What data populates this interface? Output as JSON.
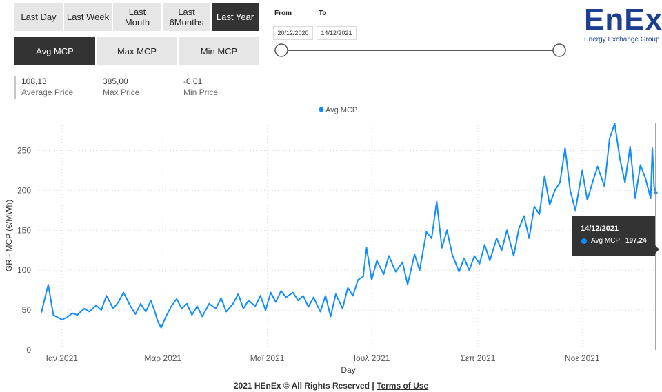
{
  "period_buttons": [
    {
      "label": "Last Day",
      "active": false
    },
    {
      "label": "Last Week",
      "active": false
    },
    {
      "label": "Last\nMonth",
      "active": false
    },
    {
      "label": "Last\n6Months",
      "active": false
    },
    {
      "label": "Last Year",
      "active": true
    }
  ],
  "metric_buttons": [
    {
      "label": "Avg MCP",
      "active": true
    },
    {
      "label": "Max MCP",
      "active": false
    },
    {
      "label": "Min MCP",
      "active": false
    }
  ],
  "kpis": [
    {
      "value": "108,13",
      "label": "Average Price"
    },
    {
      "value": "385,00",
      "label": "Max Price"
    },
    {
      "value": "-0,01",
      "label": "Min Price"
    }
  ],
  "date_range": {
    "from_label": "From",
    "to_label": "To",
    "from_value": "20/12/2020",
    "to_value": "14/12/2021"
  },
  "logo": {
    "text": "EnEx",
    "subtitle": "Energy Exchange Group"
  },
  "tooltip": {
    "date": "14/12/2021",
    "series": "Avg MCP",
    "value": "197,24"
  },
  "footer": {
    "text": "2021 HEnEx © All Rights Reserved | ",
    "link": "Terms of Use"
  },
  "colors": {
    "series": "#118dff",
    "dark_button": "#333333",
    "light_button": "#e6e6e6",
    "logo": "#1c3f8f"
  },
  "chart_data": {
    "type": "line",
    "xlabel": "Day",
    "ylabel": "GR - MCP (€/MWh)",
    "legend": "Avg MCP",
    "legend_position": "top-center",
    "grid": true,
    "ylim": [
      0,
      285
    ],
    "yticks": [
      0,
      50,
      100,
      150,
      200,
      250
    ],
    "x_ticks": [
      {
        "date": "2021-01-01",
        "label": "Ιαν 2021"
      },
      {
        "date": "2021-03-01",
        "label": "Μαρ 2021"
      },
      {
        "date": "2021-05-01",
        "label": "Μαϊ 2021"
      },
      {
        "date": "2021-07-01",
        "label": "Ιουλ 2021"
      },
      {
        "date": "2021-09-01",
        "label": "Σεπ 2021"
      },
      {
        "date": "2021-11-01",
        "label": "Νοε 2021"
      }
    ],
    "series": [
      {
        "name": "Avg MCP",
        "points": [
          [
            "2020-12-20",
            47
          ],
          [
            "2020-12-24",
            82
          ],
          [
            "2020-12-27",
            44
          ],
          [
            "2021-01-01",
            38
          ],
          [
            "2021-01-04",
            41
          ],
          [
            "2021-01-07",
            46
          ],
          [
            "2021-01-10",
            44
          ],
          [
            "2021-01-14",
            52
          ],
          [
            "2021-01-17",
            48
          ],
          [
            "2021-01-21",
            56
          ],
          [
            "2021-01-24",
            50
          ],
          [
            "2021-01-27",
            68
          ],
          [
            "2021-01-31",
            52
          ],
          [
            "2021-02-03",
            60
          ],
          [
            "2021-02-06",
            72
          ],
          [
            "2021-02-10",
            55
          ],
          [
            "2021-02-13",
            45
          ],
          [
            "2021-02-16",
            58
          ],
          [
            "2021-02-19",
            48
          ],
          [
            "2021-02-22",
            62
          ],
          [
            "2021-02-24",
            50
          ],
          [
            "2021-02-26",
            36
          ],
          [
            "2021-02-28",
            28
          ],
          [
            "2021-03-03",
            43
          ],
          [
            "2021-03-06",
            55
          ],
          [
            "2021-03-09",
            64
          ],
          [
            "2021-03-12",
            52
          ],
          [
            "2021-03-15",
            58
          ],
          [
            "2021-03-18",
            44
          ],
          [
            "2021-03-21",
            55
          ],
          [
            "2021-03-24",
            42
          ],
          [
            "2021-03-28",
            58
          ],
          [
            "2021-04-01",
            52
          ],
          [
            "2021-04-04",
            65
          ],
          [
            "2021-04-07",
            48
          ],
          [
            "2021-04-11",
            58
          ],
          [
            "2021-04-14",
            70
          ],
          [
            "2021-04-17",
            52
          ],
          [
            "2021-04-20",
            62
          ],
          [
            "2021-04-24",
            55
          ],
          [
            "2021-04-27",
            68
          ],
          [
            "2021-04-30",
            50
          ],
          [
            "2021-05-03",
            72
          ],
          [
            "2021-05-06",
            60
          ],
          [
            "2021-05-09",
            74
          ],
          [
            "2021-05-12",
            66
          ],
          [
            "2021-05-16",
            72
          ],
          [
            "2021-05-19",
            62
          ],
          [
            "2021-05-22",
            68
          ],
          [
            "2021-05-25",
            54
          ],
          [
            "2021-05-28",
            66
          ],
          [
            "2021-06-01",
            48
          ],
          [
            "2021-06-04",
            68
          ],
          [
            "2021-06-07",
            42
          ],
          [
            "2021-06-10",
            70
          ],
          [
            "2021-06-14",
            52
          ],
          [
            "2021-06-17",
            78
          ],
          [
            "2021-06-20",
            68
          ],
          [
            "2021-06-23",
            88
          ],
          [
            "2021-06-26",
            92
          ],
          [
            "2021-06-28",
            128
          ],
          [
            "2021-07-01",
            88
          ],
          [
            "2021-07-04",
            112
          ],
          [
            "2021-07-08",
            95
          ],
          [
            "2021-07-11",
            118
          ],
          [
            "2021-07-15",
            98
          ],
          [
            "2021-07-19",
            110
          ],
          [
            "2021-07-22",
            82
          ],
          [
            "2021-07-26",
            120
          ],
          [
            "2021-07-29",
            100
          ],
          [
            "2021-08-02",
            148
          ],
          [
            "2021-08-05",
            140
          ],
          [
            "2021-08-08",
            186
          ],
          [
            "2021-08-11",
            128
          ],
          [
            "2021-08-14",
            150
          ],
          [
            "2021-08-17",
            120
          ],
          [
            "2021-08-21",
            98
          ],
          [
            "2021-08-24",
            115
          ],
          [
            "2021-08-27",
            100
          ],
          [
            "2021-08-30",
            118
          ],
          [
            "2021-09-02",
            108
          ],
          [
            "2021-09-05",
            132
          ],
          [
            "2021-09-08",
            112
          ],
          [
            "2021-09-12",
            140
          ],
          [
            "2021-09-15",
            125
          ],
          [
            "2021-09-18",
            150
          ],
          [
            "2021-09-22",
            118
          ],
          [
            "2021-09-25",
            152
          ],
          [
            "2021-09-28",
            168
          ],
          [
            "2021-10-01",
            140
          ],
          [
            "2021-10-04",
            180
          ],
          [
            "2021-10-07",
            170
          ],
          [
            "2021-10-10",
            218
          ],
          [
            "2021-10-13",
            182
          ],
          [
            "2021-10-16",
            200
          ],
          [
            "2021-10-19",
            210
          ],
          [
            "2021-10-22",
            253
          ],
          [
            "2021-10-25",
            200
          ],
          [
            "2021-10-28",
            175
          ],
          [
            "2021-11-01",
            225
          ],
          [
            "2021-11-04",
            188
          ],
          [
            "2021-11-07",
            210
          ],
          [
            "2021-11-10",
            230
          ],
          [
            "2021-11-14",
            205
          ],
          [
            "2021-11-17",
            265
          ],
          [
            "2021-11-20",
            284
          ],
          [
            "2021-11-23",
            240
          ],
          [
            "2021-11-26",
            210
          ],
          [
            "2021-11-29",
            255
          ],
          [
            "2021-12-02",
            190
          ],
          [
            "2021-12-05",
            232
          ],
          [
            "2021-12-08",
            215
          ],
          [
            "2021-12-11",
            190
          ],
          [
            "2021-12-12",
            253
          ],
          [
            "2021-12-13",
            205
          ],
          [
            "2021-12-14",
            197.24
          ]
        ]
      }
    ]
  }
}
